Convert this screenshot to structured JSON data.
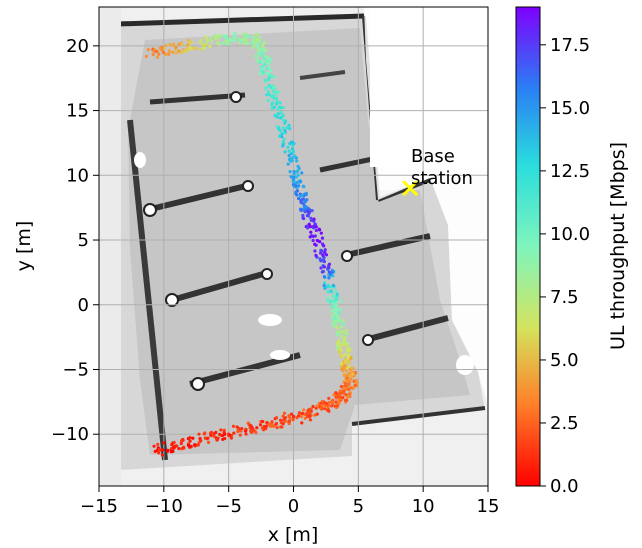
{
  "chart_data": {
    "type": "scatter",
    "xlabel": "x [m]",
    "ylabel": "y [m]",
    "xlim": [
      -15,
      15
    ],
    "ylim": [
      -14,
      23
    ],
    "xticks": [
      -15,
      -10,
      -5,
      0,
      5,
      10,
      15
    ],
    "yticks": [
      -10,
      -5,
      0,
      5,
      10,
      15,
      20
    ],
    "grid": true,
    "background": "grayscale occupancy floor map",
    "colorbar": {
      "label": "UL throughput [Mbps]",
      "range": [
        0,
        19
      ],
      "ticks": [
        0.0,
        2.5,
        5.0,
        7.5,
        10.0,
        12.5,
        15.0,
        17.5
      ],
      "colormap": "rainbow (red = low, violet = high)"
    },
    "annotation": {
      "text_line1": "Base",
      "text_line2": "station",
      "x": 9,
      "y": 9,
      "marker": "x",
      "color": "#ffff00"
    },
    "trajectory": {
      "description": "UL throughput measured along walking route",
      "points": [
        {
          "x": -10.5,
          "y": -11.3,
          "v": 0.5
        },
        {
          "x": -8.0,
          "y": -10.6,
          "v": 0.8
        },
        {
          "x": -5.0,
          "y": -9.9,
          "v": 1.2
        },
        {
          "x": -2.0,
          "y": -9.3,
          "v": 1.8
        },
        {
          "x": 0.5,
          "y": -8.6,
          "v": 2.0
        },
        {
          "x": 2.5,
          "y": -7.8,
          "v": 2.2
        },
        {
          "x": 3.8,
          "y": -7.0,
          "v": 2.5
        },
        {
          "x": 4.5,
          "y": -6.0,
          "v": 3.0
        },
        {
          "x": 4.2,
          "y": -5.0,
          "v": 4.5
        },
        {
          "x": 3.9,
          "y": -3.5,
          "v": 6.5
        },
        {
          "x": 3.5,
          "y": -1.5,
          "v": 8.5
        },
        {
          "x": 3.1,
          "y": 0.5,
          "v": 10.0
        },
        {
          "x": 2.5,
          "y": 3.0,
          "v": 17.5
        },
        {
          "x": 1.5,
          "y": 6.0,
          "v": 18.5
        },
        {
          "x": 0.8,
          "y": 8.0,
          "v": 16.0
        },
        {
          "x": 0.2,
          "y": 10.0,
          "v": 14.5
        },
        {
          "x": -0.6,
          "y": 13.0,
          "v": 13.0
        },
        {
          "x": -1.5,
          "y": 16.0,
          "v": 11.5
        },
        {
          "x": -2.2,
          "y": 18.5,
          "v": 10.0
        },
        {
          "x": -2.8,
          "y": 20.5,
          "v": 8.0
        },
        {
          "x": -5.0,
          "y": 20.6,
          "v": 9.0
        },
        {
          "x": -8.0,
          "y": 20.0,
          "v": 5.5
        },
        {
          "x": -11.2,
          "y": 19.3,
          "v": 2.5
        }
      ]
    }
  }
}
